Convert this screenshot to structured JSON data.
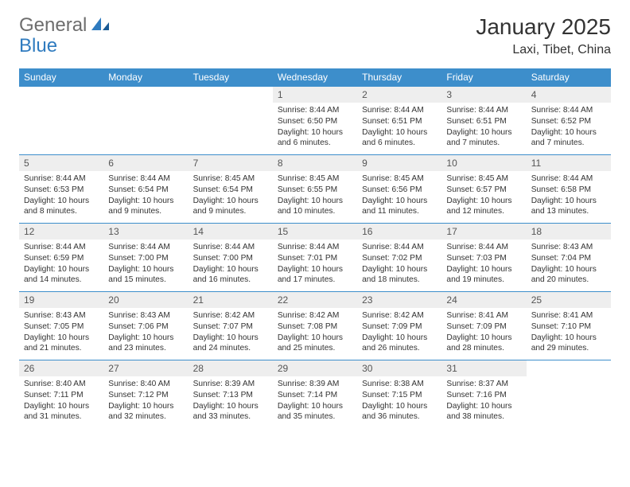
{
  "logo": {
    "general": "General",
    "blue": "Blue"
  },
  "title": "January 2025",
  "location": "Laxi, Tibet, China",
  "colors": {
    "header_bg": "#3d8ecb",
    "header_text": "#ffffff",
    "daynum_bg": "#eeeeee",
    "border": "#3d8ecb",
    "brand_gray": "#6d6d6d",
    "brand_blue": "#2f7bbf"
  },
  "weekdays": [
    "Sunday",
    "Monday",
    "Tuesday",
    "Wednesday",
    "Thursday",
    "Friday",
    "Saturday"
  ],
  "weeks": [
    [
      {
        "n": "",
        "sr": "",
        "ss": "",
        "dl": "",
        "empty": true
      },
      {
        "n": "",
        "sr": "",
        "ss": "",
        "dl": "",
        "empty": true
      },
      {
        "n": "",
        "sr": "",
        "ss": "",
        "dl": "",
        "empty": true
      },
      {
        "n": "1",
        "sr": "Sunrise: 8:44 AM",
        "ss": "Sunset: 6:50 PM",
        "dl": "Daylight: 10 hours and 6 minutes."
      },
      {
        "n": "2",
        "sr": "Sunrise: 8:44 AM",
        "ss": "Sunset: 6:51 PM",
        "dl": "Daylight: 10 hours and 6 minutes."
      },
      {
        "n": "3",
        "sr": "Sunrise: 8:44 AM",
        "ss": "Sunset: 6:51 PM",
        "dl": "Daylight: 10 hours and 7 minutes."
      },
      {
        "n": "4",
        "sr": "Sunrise: 8:44 AM",
        "ss": "Sunset: 6:52 PM",
        "dl": "Daylight: 10 hours and 7 minutes."
      }
    ],
    [
      {
        "n": "5",
        "sr": "Sunrise: 8:44 AM",
        "ss": "Sunset: 6:53 PM",
        "dl": "Daylight: 10 hours and 8 minutes."
      },
      {
        "n": "6",
        "sr": "Sunrise: 8:44 AM",
        "ss": "Sunset: 6:54 PM",
        "dl": "Daylight: 10 hours and 9 minutes."
      },
      {
        "n": "7",
        "sr": "Sunrise: 8:45 AM",
        "ss": "Sunset: 6:54 PM",
        "dl": "Daylight: 10 hours and 9 minutes."
      },
      {
        "n": "8",
        "sr": "Sunrise: 8:45 AM",
        "ss": "Sunset: 6:55 PM",
        "dl": "Daylight: 10 hours and 10 minutes."
      },
      {
        "n": "9",
        "sr": "Sunrise: 8:45 AM",
        "ss": "Sunset: 6:56 PM",
        "dl": "Daylight: 10 hours and 11 minutes."
      },
      {
        "n": "10",
        "sr": "Sunrise: 8:45 AM",
        "ss": "Sunset: 6:57 PM",
        "dl": "Daylight: 10 hours and 12 minutes."
      },
      {
        "n": "11",
        "sr": "Sunrise: 8:44 AM",
        "ss": "Sunset: 6:58 PM",
        "dl": "Daylight: 10 hours and 13 minutes."
      }
    ],
    [
      {
        "n": "12",
        "sr": "Sunrise: 8:44 AM",
        "ss": "Sunset: 6:59 PM",
        "dl": "Daylight: 10 hours and 14 minutes."
      },
      {
        "n": "13",
        "sr": "Sunrise: 8:44 AM",
        "ss": "Sunset: 7:00 PM",
        "dl": "Daylight: 10 hours and 15 minutes."
      },
      {
        "n": "14",
        "sr": "Sunrise: 8:44 AM",
        "ss": "Sunset: 7:00 PM",
        "dl": "Daylight: 10 hours and 16 minutes."
      },
      {
        "n": "15",
        "sr": "Sunrise: 8:44 AM",
        "ss": "Sunset: 7:01 PM",
        "dl": "Daylight: 10 hours and 17 minutes."
      },
      {
        "n": "16",
        "sr": "Sunrise: 8:44 AM",
        "ss": "Sunset: 7:02 PM",
        "dl": "Daylight: 10 hours and 18 minutes."
      },
      {
        "n": "17",
        "sr": "Sunrise: 8:44 AM",
        "ss": "Sunset: 7:03 PM",
        "dl": "Daylight: 10 hours and 19 minutes."
      },
      {
        "n": "18",
        "sr": "Sunrise: 8:43 AM",
        "ss": "Sunset: 7:04 PM",
        "dl": "Daylight: 10 hours and 20 minutes."
      }
    ],
    [
      {
        "n": "19",
        "sr": "Sunrise: 8:43 AM",
        "ss": "Sunset: 7:05 PM",
        "dl": "Daylight: 10 hours and 21 minutes."
      },
      {
        "n": "20",
        "sr": "Sunrise: 8:43 AM",
        "ss": "Sunset: 7:06 PM",
        "dl": "Daylight: 10 hours and 23 minutes."
      },
      {
        "n": "21",
        "sr": "Sunrise: 8:42 AM",
        "ss": "Sunset: 7:07 PM",
        "dl": "Daylight: 10 hours and 24 minutes."
      },
      {
        "n": "22",
        "sr": "Sunrise: 8:42 AM",
        "ss": "Sunset: 7:08 PM",
        "dl": "Daylight: 10 hours and 25 minutes."
      },
      {
        "n": "23",
        "sr": "Sunrise: 8:42 AM",
        "ss": "Sunset: 7:09 PM",
        "dl": "Daylight: 10 hours and 26 minutes."
      },
      {
        "n": "24",
        "sr": "Sunrise: 8:41 AM",
        "ss": "Sunset: 7:09 PM",
        "dl": "Daylight: 10 hours and 28 minutes."
      },
      {
        "n": "25",
        "sr": "Sunrise: 8:41 AM",
        "ss": "Sunset: 7:10 PM",
        "dl": "Daylight: 10 hours and 29 minutes."
      }
    ],
    [
      {
        "n": "26",
        "sr": "Sunrise: 8:40 AM",
        "ss": "Sunset: 7:11 PM",
        "dl": "Daylight: 10 hours and 31 minutes."
      },
      {
        "n": "27",
        "sr": "Sunrise: 8:40 AM",
        "ss": "Sunset: 7:12 PM",
        "dl": "Daylight: 10 hours and 32 minutes."
      },
      {
        "n": "28",
        "sr": "Sunrise: 8:39 AM",
        "ss": "Sunset: 7:13 PM",
        "dl": "Daylight: 10 hours and 33 minutes."
      },
      {
        "n": "29",
        "sr": "Sunrise: 8:39 AM",
        "ss": "Sunset: 7:14 PM",
        "dl": "Daylight: 10 hours and 35 minutes."
      },
      {
        "n": "30",
        "sr": "Sunrise: 8:38 AM",
        "ss": "Sunset: 7:15 PM",
        "dl": "Daylight: 10 hours and 36 minutes."
      },
      {
        "n": "31",
        "sr": "Sunrise: 8:37 AM",
        "ss": "Sunset: 7:16 PM",
        "dl": "Daylight: 10 hours and 38 minutes."
      },
      {
        "n": "",
        "sr": "",
        "ss": "",
        "dl": "",
        "empty": true
      }
    ]
  ]
}
